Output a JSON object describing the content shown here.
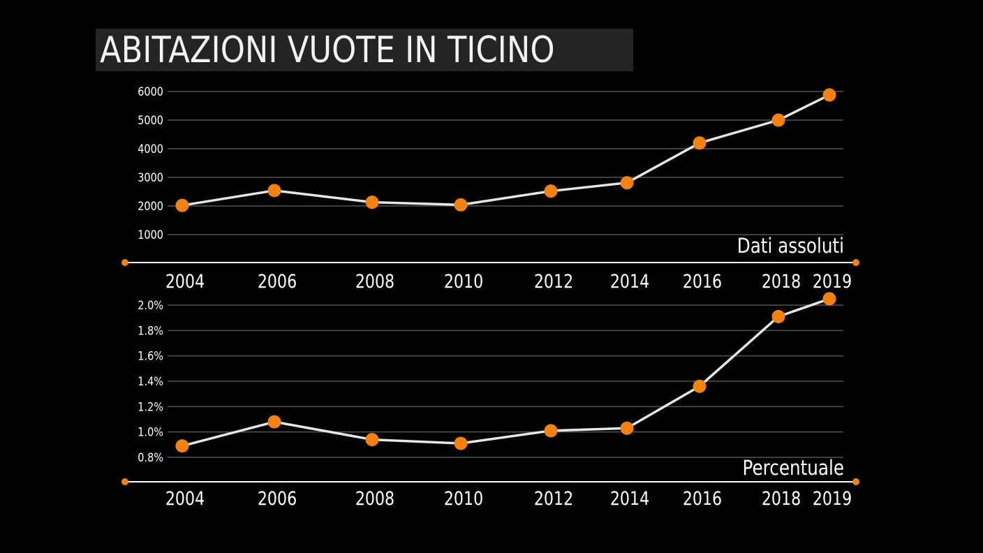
{
  "title": "ABITAZIONI VUOTE IN TICINO",
  "colors": {
    "background": "#000000",
    "grid": "#555555",
    "line": "#e6e6e6",
    "marker": "#f5820f",
    "axis": "#ffffff"
  },
  "chart_data": [
    {
      "type": "line",
      "caption": "Dati assoluti",
      "x": [
        "2004",
        "2006",
        "2008",
        "2010",
        "2012",
        "2014",
        "2016",
        "2018",
        "2019"
      ],
      "values": [
        2020,
        2540,
        2130,
        2040,
        2520,
        2810,
        4200,
        5000,
        5880
      ],
      "yticks": [
        "6000",
        "5000",
        "4000",
        "3000",
        "2000",
        "1000"
      ],
      "ytick_values": [
        6000,
        5000,
        4000,
        3000,
        2000,
        1000
      ],
      "ylim": [
        1000,
        6000
      ],
      "grid": true
    },
    {
      "type": "line",
      "caption": "Percentuale",
      "x": [
        "2004",
        "2006",
        "2008",
        "2010",
        "2012",
        "2014",
        "2016",
        "2018",
        "2019"
      ],
      "values": [
        0.89,
        1.08,
        0.94,
        0.91,
        1.01,
        1.03,
        1.36,
        1.91,
        2.05
      ],
      "yticks": [
        "2.0%",
        "1.8%",
        "1.6%",
        "1.4%",
        "1.2%",
        "1.0%",
        "0.8%"
      ],
      "ytick_values": [
        2.0,
        1.8,
        1.6,
        1.4,
        1.2,
        1.0,
        0.8
      ],
      "ylim": [
        0.8,
        2.0
      ],
      "grid": true
    }
  ]
}
